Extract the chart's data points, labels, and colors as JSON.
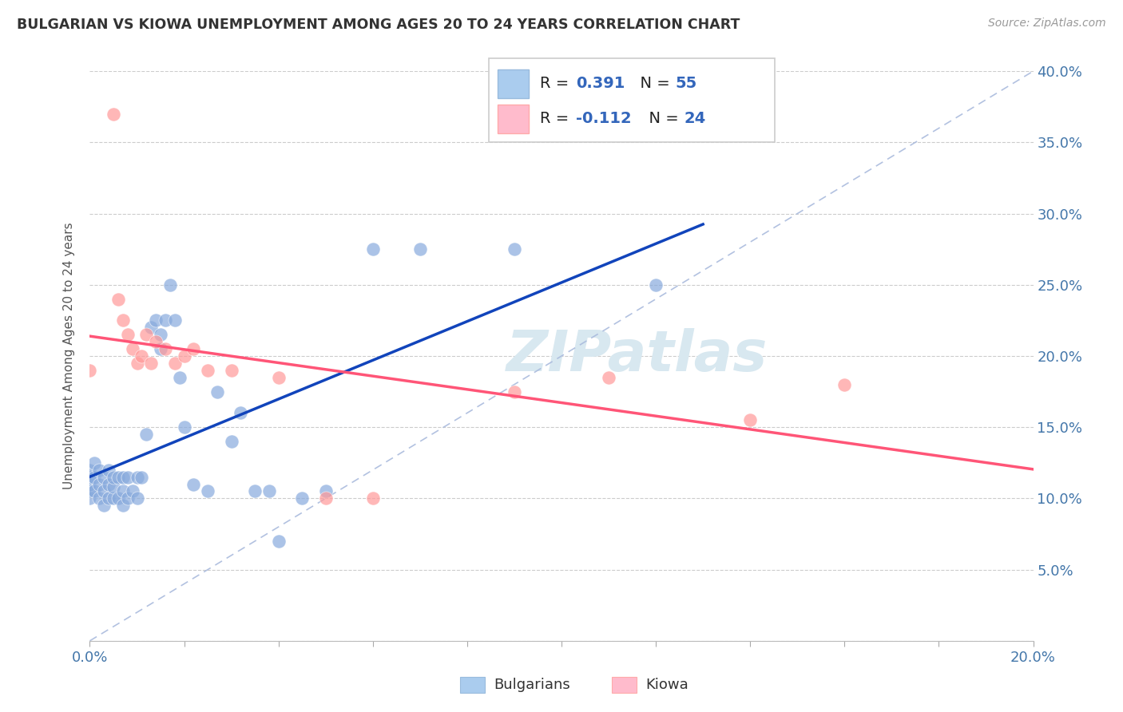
{
  "title": "BULGARIAN VS KIOWA UNEMPLOYMENT AMONG AGES 20 TO 24 YEARS CORRELATION CHART",
  "source": "Source: ZipAtlas.com",
  "ylabel": "Unemployment Among Ages 20 to 24 years",
  "xlim": [
    0.0,
    0.2
  ],
  "ylim": [
    0.0,
    0.4
  ],
  "bulgarian_color": "#88AADD",
  "kiowa_color": "#FF9999",
  "trend_bulgarian_color": "#1144BB",
  "trend_kiowa_color": "#FF5577",
  "diagonal_color": "#AABBDD",
  "r_bulgarian": 0.391,
  "n_bulgarian": 55,
  "r_kiowa": -0.112,
  "n_kiowa": 24,
  "bx": [
    0.0,
    0.0,
    0.0,
    0.0,
    0.0,
    0.001,
    0.001,
    0.001,
    0.002,
    0.002,
    0.002,
    0.003,
    0.003,
    0.003,
    0.004,
    0.004,
    0.004,
    0.005,
    0.005,
    0.005,
    0.006,
    0.006,
    0.007,
    0.007,
    0.007,
    0.008,
    0.008,
    0.009,
    0.01,
    0.01,
    0.011,
    0.012,
    0.013,
    0.014,
    0.015,
    0.015,
    0.016,
    0.017,
    0.018,
    0.019,
    0.02,
    0.022,
    0.025,
    0.027,
    0.03,
    0.032,
    0.035,
    0.038,
    0.04,
    0.045,
    0.05,
    0.06,
    0.07,
    0.09,
    0.12
  ],
  "by": [
    0.1,
    0.105,
    0.11,
    0.115,
    0.12,
    0.105,
    0.115,
    0.125,
    0.1,
    0.11,
    0.12,
    0.095,
    0.105,
    0.115,
    0.1,
    0.11,
    0.12,
    0.1,
    0.108,
    0.115,
    0.1,
    0.115,
    0.095,
    0.105,
    0.115,
    0.1,
    0.115,
    0.105,
    0.1,
    0.115,
    0.115,
    0.145,
    0.22,
    0.225,
    0.215,
    0.205,
    0.225,
    0.25,
    0.225,
    0.185,
    0.15,
    0.11,
    0.105,
    0.175,
    0.14,
    0.16,
    0.105,
    0.105,
    0.07,
    0.1,
    0.105,
    0.275,
    0.275,
    0.275,
    0.25
  ],
  "kx": [
    0.0,
    0.005,
    0.006,
    0.007,
    0.008,
    0.009,
    0.01,
    0.011,
    0.012,
    0.013,
    0.014,
    0.016,
    0.018,
    0.02,
    0.022,
    0.025,
    0.03,
    0.04,
    0.05,
    0.06,
    0.09,
    0.11,
    0.14,
    0.16
  ],
  "ky": [
    0.19,
    0.37,
    0.24,
    0.225,
    0.215,
    0.205,
    0.195,
    0.2,
    0.215,
    0.195,
    0.21,
    0.205,
    0.195,
    0.2,
    0.205,
    0.19,
    0.19,
    0.185,
    0.1,
    0.1,
    0.175,
    0.185,
    0.155,
    0.18
  ],
  "legend_box_bulgarian": "#AACCEE",
  "legend_box_kiowa": "#FFBBCC",
  "watermark_text": "ZIPatlas",
  "watermark_color": "#D8E8F0"
}
